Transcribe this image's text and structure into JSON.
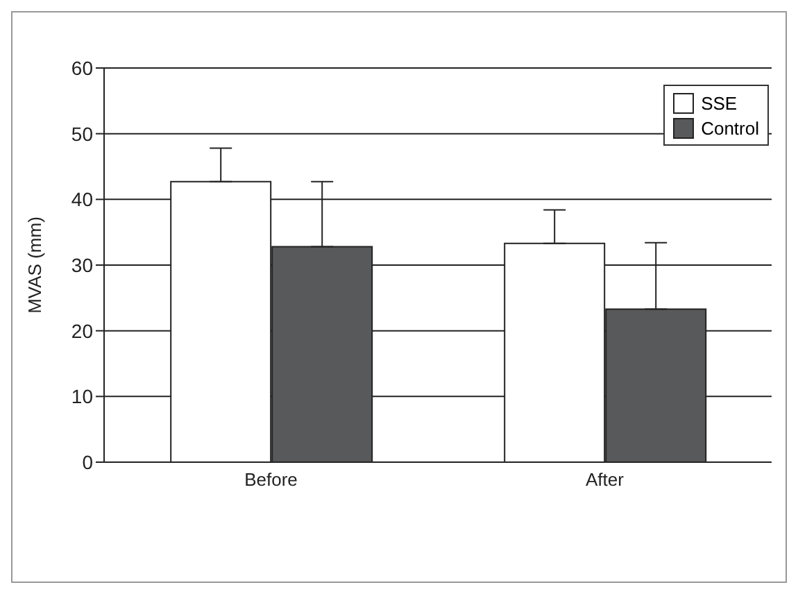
{
  "chart_data": {
    "type": "bar",
    "ylabel": "MVAS (mm)",
    "categories": [
      "Before",
      "After"
    ],
    "series": [
      {
        "name": "SSE",
        "color": "#ffffff",
        "values": [
          42.7,
          33.3
        ],
        "errors": [
          [
            42.7,
            47.8
          ],
          [
            33.3,
            38.4
          ]
        ]
      },
      {
        "name": "Control",
        "color": "#58595b",
        "values": [
          32.8,
          23.3
        ],
        "errors": [
          [
            32.8,
            42.7
          ],
          [
            23.3,
            33.4
          ]
        ]
      }
    ],
    "ylim": [
      0,
      60
    ],
    "yticks": [
      0,
      10,
      20,
      30,
      40,
      50,
      60
    ],
    "grid": "y",
    "legend": "top right"
  }
}
